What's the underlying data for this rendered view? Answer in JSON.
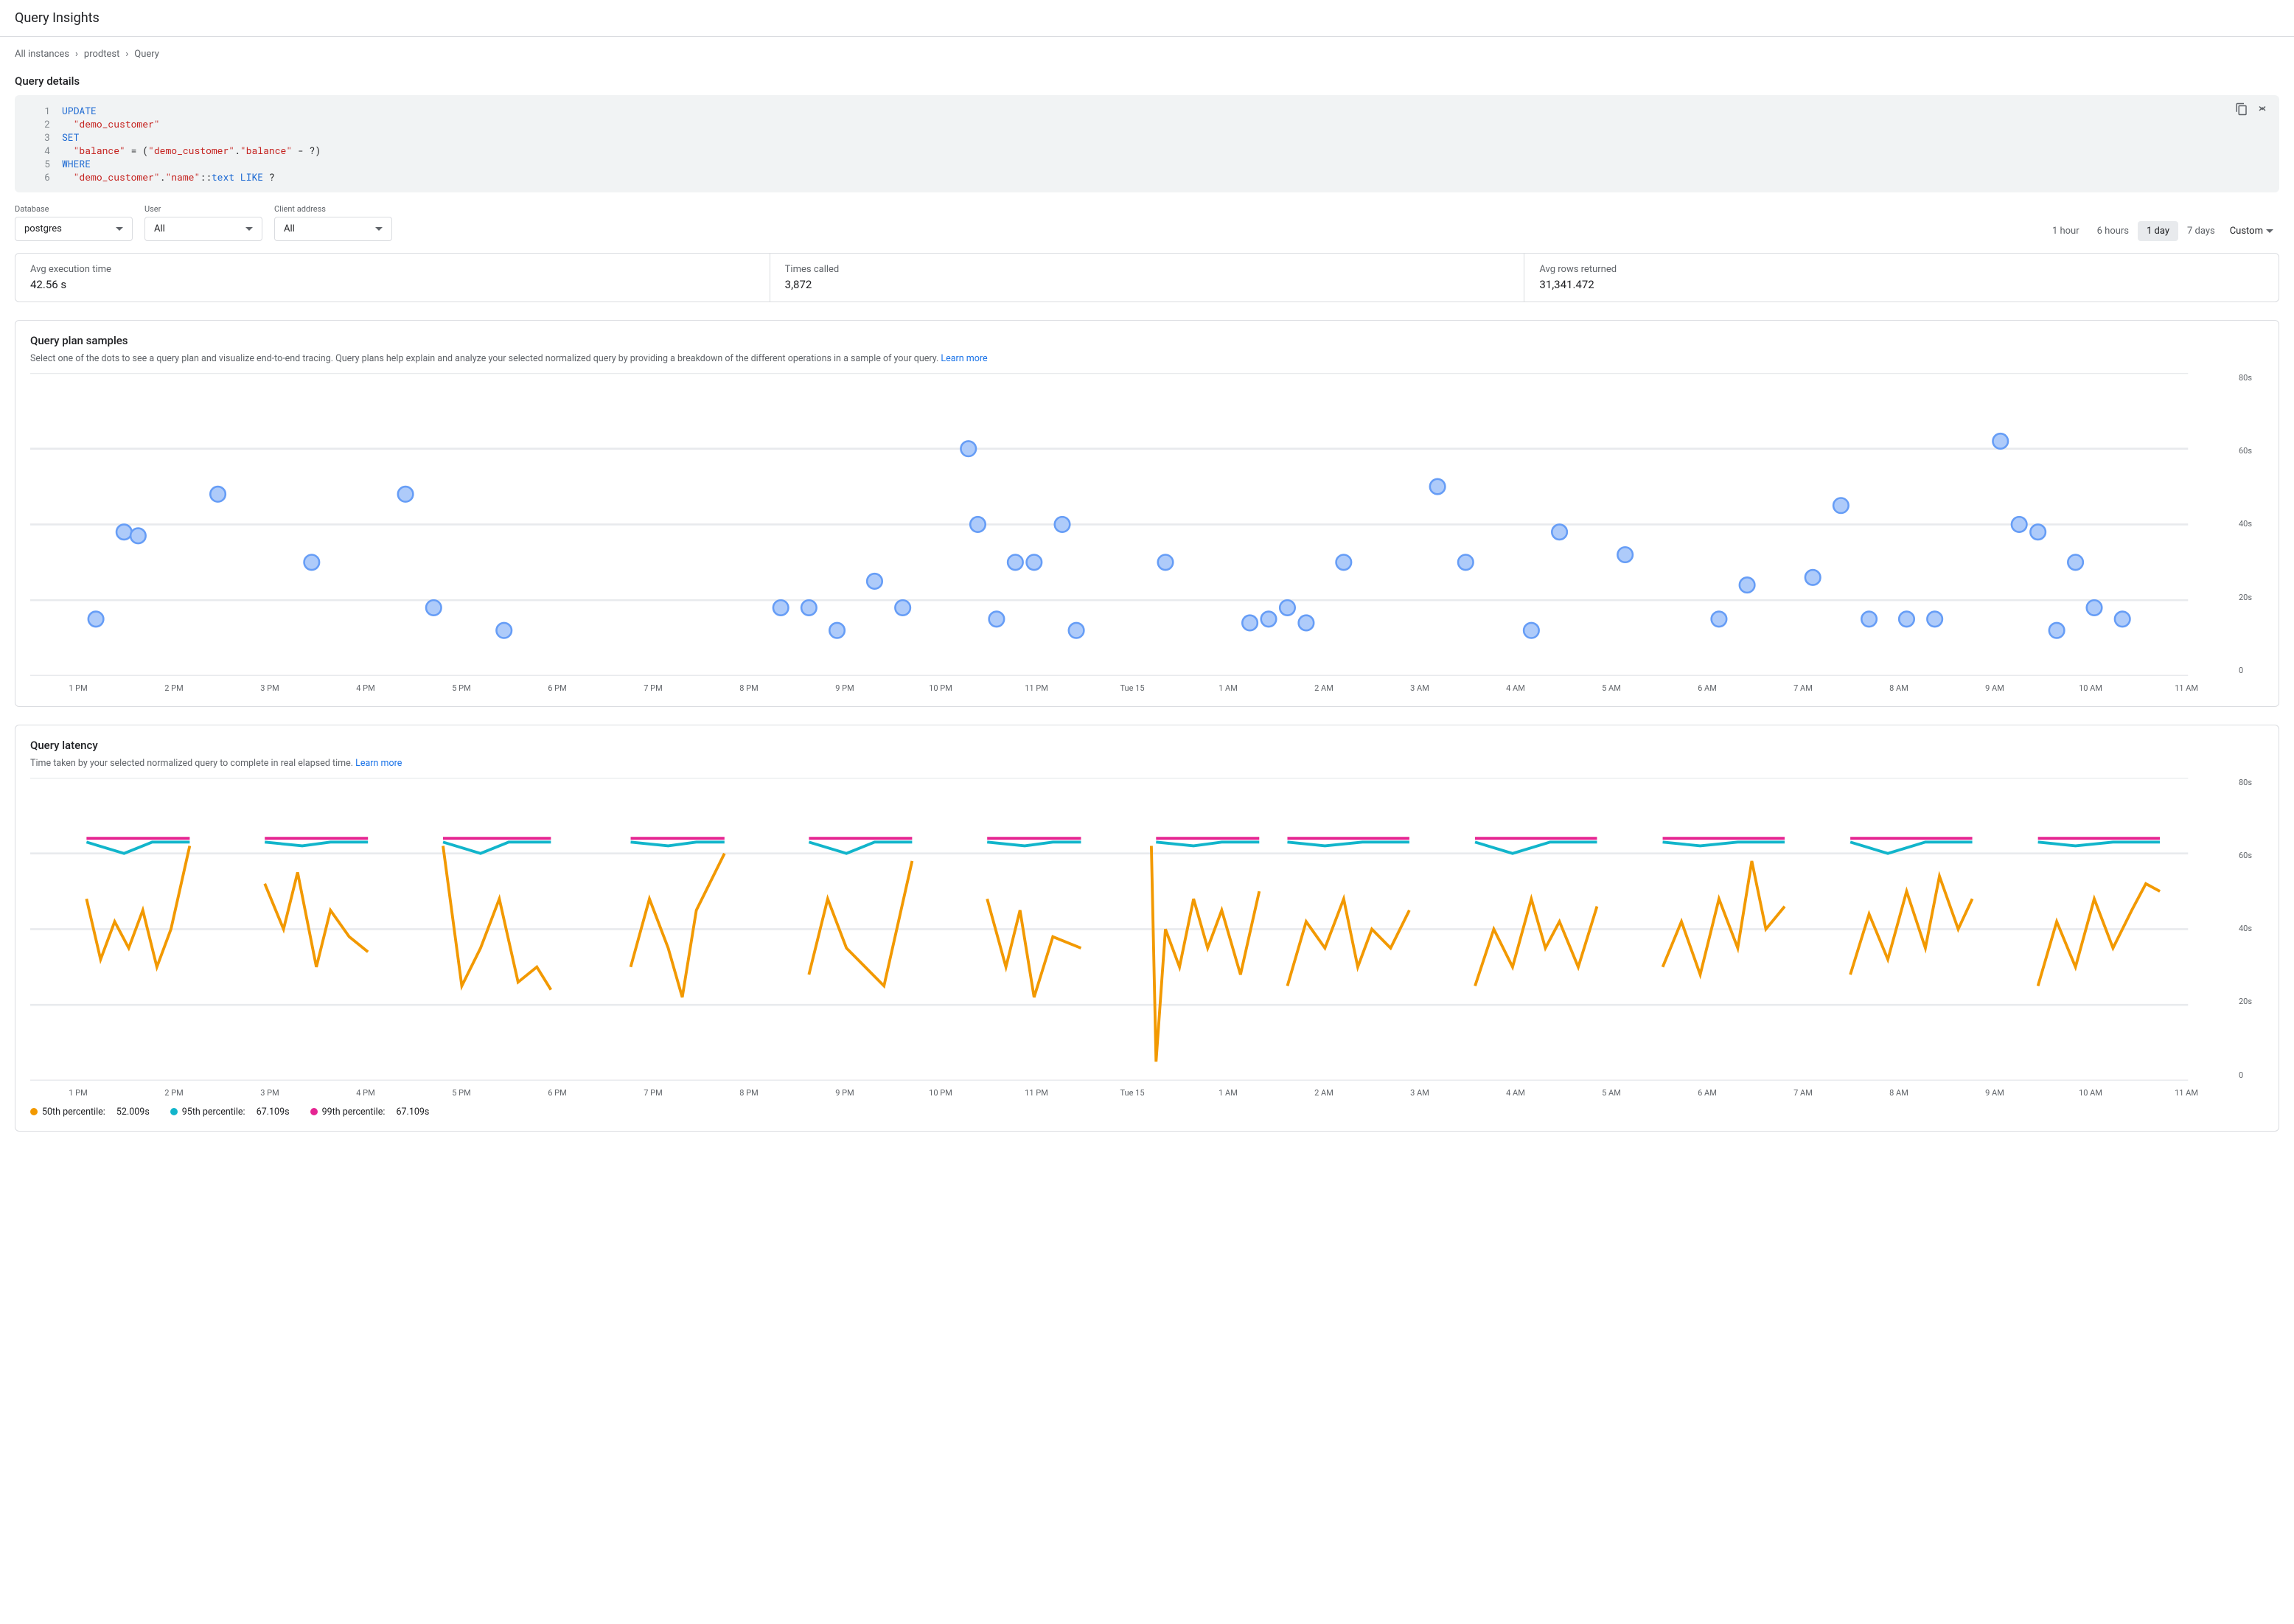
{
  "page_title": "Query Insights",
  "breadcrumb": [
    "All instances",
    "prodtest",
    "Query"
  ],
  "query_details": {
    "title": "Query details",
    "lines": [
      {
        "n": "1",
        "html": "<span class='kw'>UPDATE</span>"
      },
      {
        "n": "2",
        "html": "&nbsp;&nbsp;<span class='str'>\"demo_customer\"</span>"
      },
      {
        "n": "3",
        "html": "<span class='kw'>SET</span>"
      },
      {
        "n": "4",
        "html": "&nbsp;&nbsp;<span class='str'>\"balance\"</span> <span class='op'>=</span> (<span class='str'>\"demo_customer\"</span>.<span class='str'>\"balance\"</span> <span class='op'>-</span> ?)"
      },
      {
        "n": "5",
        "html": "<span class='kw'>WHERE</span>"
      },
      {
        "n": "6",
        "html": "&nbsp;&nbsp;<span class='str'>\"demo_customer\"</span>.<span class='str'>\"name\"</span>::<span class='fn'>text</span> <span class='kw'>LIKE</span> ?"
      }
    ]
  },
  "filters": {
    "database": {
      "label": "Database",
      "value": "postgres"
    },
    "user": {
      "label": "User",
      "value": "All"
    },
    "client": {
      "label": "Client address",
      "value": "All"
    }
  },
  "time_range": {
    "options": [
      "1 hour",
      "6 hours",
      "1 day",
      "7 days"
    ],
    "active": "1 day",
    "custom": "Custom"
  },
  "stats": [
    {
      "label": "Avg execution time",
      "value": "42.56 s"
    },
    {
      "label": "Times called",
      "value": "3,872"
    },
    {
      "label": "Avg rows returned",
      "value": "31,341.472"
    }
  ],
  "scatter": {
    "title": "Query plan samples",
    "desc": "Select one of the dots to see a query plan and visualize end-to-end tracing. Query plans help explain and analyze your selected normalized query by providing a breakdown of the different operations in a sample of your query. ",
    "learn": "Learn more",
    "type": "scatter",
    "ylim": [
      0,
      80
    ],
    "yticks": [
      "80s",
      "60s",
      "40s",
      "20s",
      "0"
    ],
    "xticks": [
      "1 PM",
      "2 PM",
      "3 PM",
      "4 PM",
      "5 PM",
      "6 PM",
      "7 PM",
      "8 PM",
      "9 PM",
      "10 PM",
      "11 PM",
      "Tue 15",
      "1 AM",
      "2 AM",
      "3 AM",
      "4 AM",
      "5 AM",
      "6 AM",
      "7 AM",
      "8 AM",
      "9 AM",
      "10 AM",
      "11 AM"
    ],
    "marker_color": "#aecbfa",
    "marker_stroke": "#669df6",
    "grid_color": "#e8eaed",
    "background_color": "#ffffff",
    "marker_radius": 4,
    "points": [
      [
        0.7,
        15
      ],
      [
        1.0,
        38
      ],
      [
        1.15,
        37
      ],
      [
        2.0,
        48
      ],
      [
        3.0,
        30
      ],
      [
        4.0,
        48
      ],
      [
        4.3,
        18
      ],
      [
        5.05,
        12
      ],
      [
        8.0,
        18
      ],
      [
        8.3,
        18
      ],
      [
        8.6,
        12
      ],
      [
        9.0,
        25
      ],
      [
        9.3,
        18
      ],
      [
        10.0,
        60
      ],
      [
        10.1,
        40
      ],
      [
        10.3,
        15
      ],
      [
        10.5,
        30
      ],
      [
        10.7,
        30
      ],
      [
        11.0,
        40
      ],
      [
        11.15,
        12
      ],
      [
        12.1,
        30
      ],
      [
        13.0,
        14
      ],
      [
        13.2,
        15
      ],
      [
        13.4,
        18
      ],
      [
        13.6,
        14
      ],
      [
        14.0,
        30
      ],
      [
        15.0,
        50
      ],
      [
        15.3,
        30
      ],
      [
        16.0,
        12
      ],
      [
        16.3,
        38
      ],
      [
        17.0,
        32
      ],
      [
        18.0,
        15
      ],
      [
        18.3,
        24
      ],
      [
        19.0,
        26
      ],
      [
        19.3,
        45
      ],
      [
        19.6,
        15
      ],
      [
        20.0,
        15
      ],
      [
        20.3,
        15
      ],
      [
        21.0,
        62
      ],
      [
        21.2,
        40
      ],
      [
        21.4,
        38
      ],
      [
        21.6,
        12
      ],
      [
        21.8,
        30
      ],
      [
        22.0,
        18
      ],
      [
        22.3,
        15
      ]
    ]
  },
  "latency": {
    "title": "Query latency",
    "desc": "Time taken by your selected normalized query to complete in real elapsed time. ",
    "learn": "Learn more",
    "type": "line",
    "ylim": [
      0,
      80
    ],
    "yticks": [
      "80s",
      "60s",
      "40s",
      "20s",
      "0"
    ],
    "xticks": [
      "1 PM",
      "2 PM",
      "3 PM",
      "4 PM",
      "5 PM",
      "6 PM",
      "7 PM",
      "8 PM",
      "9 PM",
      "10 PM",
      "11 PM",
      "Tue 15",
      "1 AM",
      "2 AM",
      "3 AM",
      "4 AM",
      "5 AM",
      "6 AM",
      "7 AM",
      "8 AM",
      "9 AM",
      "10 AM",
      "11 AM"
    ],
    "grid_color": "#e8eaed",
    "colors": {
      "p50": "#f29900",
      "p95": "#12b5cb",
      "p99": "#e52592"
    },
    "line_width": 1.5,
    "legend": [
      {
        "label": "50th percentile:",
        "value": "52.009s",
        "color": "#f29900"
      },
      {
        "label": "95th percentile:",
        "value": "67.109s",
        "color": "#12b5cb"
      },
      {
        "label": "99th percentile:",
        "value": "67.109s",
        "color": "#e52592"
      }
    ],
    "segments_p50": [
      [
        [
          0.6,
          48
        ],
        [
          0.75,
          32
        ],
        [
          0.9,
          42
        ],
        [
          1.05,
          35
        ],
        [
          1.2,
          45
        ],
        [
          1.35,
          30
        ],
        [
          1.5,
          40
        ],
        [
          1.7,
          62
        ]
      ],
      [
        [
          2.5,
          52
        ],
        [
          2.7,
          40
        ],
        [
          2.85,
          55
        ],
        [
          3.05,
          30
        ],
        [
          3.2,
          45
        ],
        [
          3.4,
          38
        ],
        [
          3.6,
          34
        ]
      ],
      [
        [
          4.4,
          62
        ],
        [
          4.6,
          25
        ],
        [
          4.8,
          35
        ],
        [
          5.0,
          48
        ],
        [
          5.2,
          26
        ],
        [
          5.4,
          30
        ],
        [
          5.55,
          24
        ]
      ],
      [
        [
          6.4,
          30
        ],
        [
          6.6,
          48
        ],
        [
          6.8,
          35
        ],
        [
          6.95,
          22
        ],
        [
          7.1,
          45
        ],
        [
          7.4,
          60
        ]
      ],
      [
        [
          8.3,
          28
        ],
        [
          8.5,
          48
        ],
        [
          8.7,
          35
        ],
        [
          8.9,
          30
        ],
        [
          9.1,
          25
        ],
        [
          9.4,
          58
        ]
      ],
      [
        [
          10.2,
          48
        ],
        [
          10.4,
          30
        ],
        [
          10.55,
          45
        ],
        [
          10.7,
          22
        ],
        [
          10.9,
          38
        ],
        [
          11.2,
          35
        ]
      ],
      [
        [
          11.95,
          62
        ],
        [
          12.0,
          5
        ],
        [
          12.1,
          40
        ],
        [
          12.25,
          30
        ],
        [
          12.4,
          48
        ],
        [
          12.55,
          35
        ],
        [
          12.7,
          45
        ],
        [
          12.9,
          28
        ],
        [
          13.1,
          50
        ]
      ],
      [
        [
          13.4,
          25
        ],
        [
          13.6,
          42
        ],
        [
          13.8,
          35
        ],
        [
          14.0,
          48
        ],
        [
          14.15,
          30
        ],
        [
          14.3,
          40
        ],
        [
          14.5,
          35
        ],
        [
          14.7,
          45
        ]
      ],
      [
        [
          15.4,
          25
        ],
        [
          15.6,
          40
        ],
        [
          15.8,
          30
        ],
        [
          16.0,
          48
        ],
        [
          16.15,
          35
        ],
        [
          16.3,
          42
        ],
        [
          16.5,
          30
        ],
        [
          16.7,
          46
        ]
      ],
      [
        [
          17.4,
          30
        ],
        [
          17.6,
          42
        ],
        [
          17.8,
          28
        ],
        [
          18.0,
          48
        ],
        [
          18.2,
          35
        ],
        [
          18.35,
          58
        ],
        [
          18.5,
          40
        ],
        [
          18.7,
          46
        ]
      ],
      [
        [
          19.4,
          28
        ],
        [
          19.6,
          44
        ],
        [
          19.8,
          32
        ],
        [
          20.0,
          50
        ],
        [
          20.2,
          35
        ],
        [
          20.35,
          54
        ],
        [
          20.55,
          40
        ],
        [
          20.7,
          48
        ]
      ],
      [
        [
          21.4,
          25
        ],
        [
          21.6,
          42
        ],
        [
          21.8,
          30
        ],
        [
          22.0,
          48
        ],
        [
          22.2,
          35
        ],
        [
          22.4,
          45
        ],
        [
          22.55,
          52
        ],
        [
          22.7,
          50
        ]
      ]
    ],
    "segments_p95": [
      [
        [
          0.6,
          63
        ],
        [
          1.0,
          60
        ],
        [
          1.3,
          63
        ],
        [
          1.7,
          63
        ]
      ],
      [
        [
          2.5,
          63
        ],
        [
          2.9,
          62
        ],
        [
          3.2,
          63
        ],
        [
          3.6,
          63
        ]
      ],
      [
        [
          4.4,
          63
        ],
        [
          4.8,
          60
        ],
        [
          5.1,
          63
        ],
        [
          5.55,
          63
        ]
      ],
      [
        [
          6.4,
          63
        ],
        [
          6.8,
          62
        ],
        [
          7.1,
          63
        ],
        [
          7.4,
          63
        ]
      ],
      [
        [
          8.3,
          63
        ],
        [
          8.7,
          60
        ],
        [
          9.0,
          63
        ],
        [
          9.4,
          63
        ]
      ],
      [
        [
          10.2,
          63
        ],
        [
          10.6,
          62
        ],
        [
          10.9,
          63
        ],
        [
          11.2,
          63
        ]
      ],
      [
        [
          12.0,
          63
        ],
        [
          12.4,
          62
        ],
        [
          12.7,
          63
        ],
        [
          13.1,
          63
        ]
      ],
      [
        [
          13.4,
          63
        ],
        [
          13.8,
          62
        ],
        [
          14.2,
          63
        ],
        [
          14.7,
          63
        ]
      ],
      [
        [
          15.4,
          63
        ],
        [
          15.8,
          60
        ],
        [
          16.2,
          63
        ],
        [
          16.7,
          63
        ]
      ],
      [
        [
          17.4,
          63
        ],
        [
          17.8,
          62
        ],
        [
          18.2,
          63
        ],
        [
          18.7,
          63
        ]
      ],
      [
        [
          19.4,
          63
        ],
        [
          19.8,
          60
        ],
        [
          20.2,
          63
        ],
        [
          20.7,
          63
        ]
      ],
      [
        [
          21.4,
          63
        ],
        [
          21.8,
          62
        ],
        [
          22.2,
          63
        ],
        [
          22.7,
          63
        ]
      ]
    ],
    "segments_p99": [
      [
        [
          0.6,
          64
        ],
        [
          1.7,
          64
        ]
      ],
      [
        [
          2.5,
          64
        ],
        [
          3.6,
          64
        ]
      ],
      [
        [
          4.4,
          64
        ],
        [
          5.55,
          64
        ]
      ],
      [
        [
          6.4,
          64
        ],
        [
          7.4,
          64
        ]
      ],
      [
        [
          8.3,
          64
        ],
        [
          9.4,
          64
        ]
      ],
      [
        [
          10.2,
          64
        ],
        [
          11.2,
          64
        ]
      ],
      [
        [
          12.0,
          64
        ],
        [
          13.1,
          64
        ]
      ],
      [
        [
          13.4,
          64
        ],
        [
          14.7,
          64
        ]
      ],
      [
        [
          15.4,
          64
        ],
        [
          16.7,
          64
        ]
      ],
      [
        [
          17.4,
          64
        ],
        [
          18.7,
          64
        ]
      ],
      [
        [
          19.4,
          64
        ],
        [
          20.7,
          64
        ]
      ],
      [
        [
          21.4,
          64
        ],
        [
          22.7,
          64
        ]
      ]
    ]
  }
}
